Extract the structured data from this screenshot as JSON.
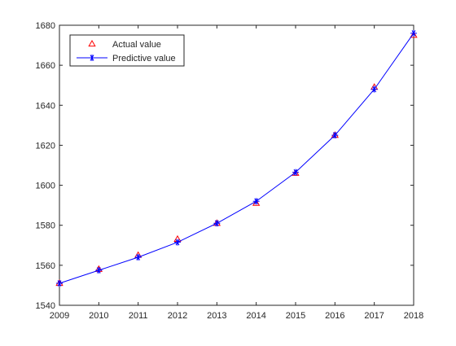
{
  "chart_data": {
    "type": "line",
    "title": "",
    "xlabel": "",
    "ylabel": "",
    "x": [
      2009,
      2010,
      2011,
      2012,
      2013,
      2014,
      2015,
      2016,
      2017,
      2018
    ],
    "xlim": [
      2009,
      2018
    ],
    "ylim": [
      1540,
      1680
    ],
    "xticks": [
      2009,
      2010,
      2011,
      2012,
      2013,
      2014,
      2015,
      2016,
      2017,
      2018
    ],
    "yticks": [
      1540,
      1560,
      1580,
      1600,
      1620,
      1640,
      1660,
      1680
    ],
    "grid": false,
    "legend_position": "top-left",
    "series": [
      {
        "name": "Actual value",
        "style": "markers",
        "marker": "triangle",
        "color": "#ff0000",
        "values": [
          1551,
          1558,
          1565,
          1573,
          1581,
          1591,
          1606,
          1625,
          1649,
          1675
        ]
      },
      {
        "name": "Predictive value",
        "style": "line-markers",
        "marker": "asterisk",
        "color": "#0000ff",
        "values": [
          1551,
          1557.5,
          1564,
          1571.5,
          1581,
          1592,
          1606.5,
          1625,
          1648,
          1676
        ]
      }
    ]
  }
}
